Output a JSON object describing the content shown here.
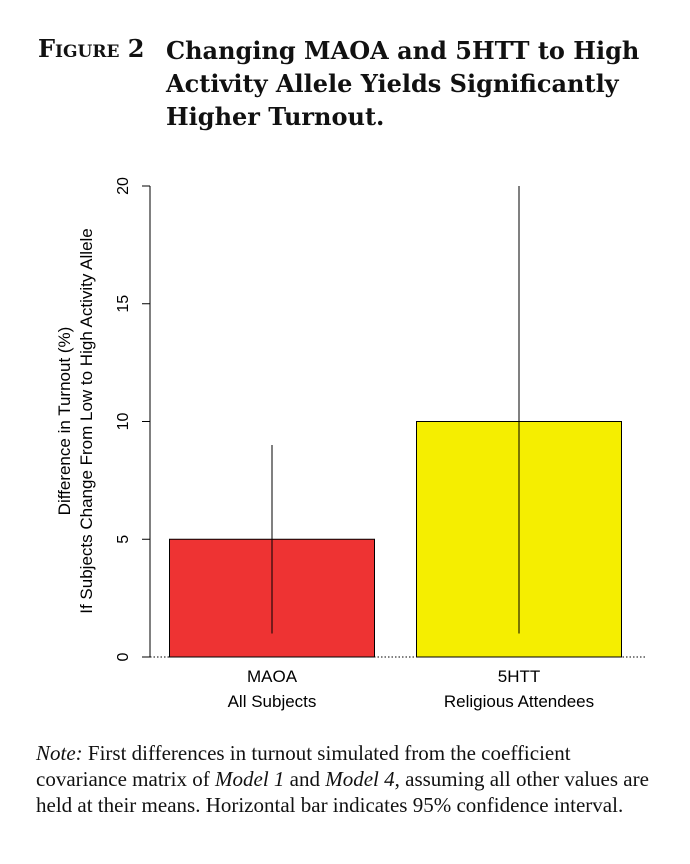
{
  "figure": {
    "number": "Figure 2",
    "title": "Changing MAOA and 5HTT to High Activity Allele Yields Significantly Higher Turnout."
  },
  "chart_data": {
    "type": "bar",
    "categories": [
      [
        "MAOA",
        "All Subjects"
      ],
      [
        "5HTT",
        "Religious Attendees"
      ]
    ],
    "values": [
      5,
      10
    ],
    "ci_low": [
      1,
      1
    ],
    "ci_high": [
      9,
      20
    ],
    "bar_colors": [
      "#ee3333",
      "#f5ee00"
    ],
    "ylabel": [
      "Difference in Turnout (%)",
      "If Subjects Change From Low to High Activity Allele"
    ],
    "ylim": [
      0,
      20
    ],
    "yticks": [
      0,
      5,
      10,
      15,
      20
    ],
    "grid": false
  },
  "note": {
    "label": "Note:",
    "parts": [
      " First differences in turnout simulated from the coefficient covariance matrix of ",
      "Model 1",
      " and ",
      "Model 4",
      ", assuming all other values are held at their means. Horizontal bar indicates 95% confidence interval."
    ]
  }
}
